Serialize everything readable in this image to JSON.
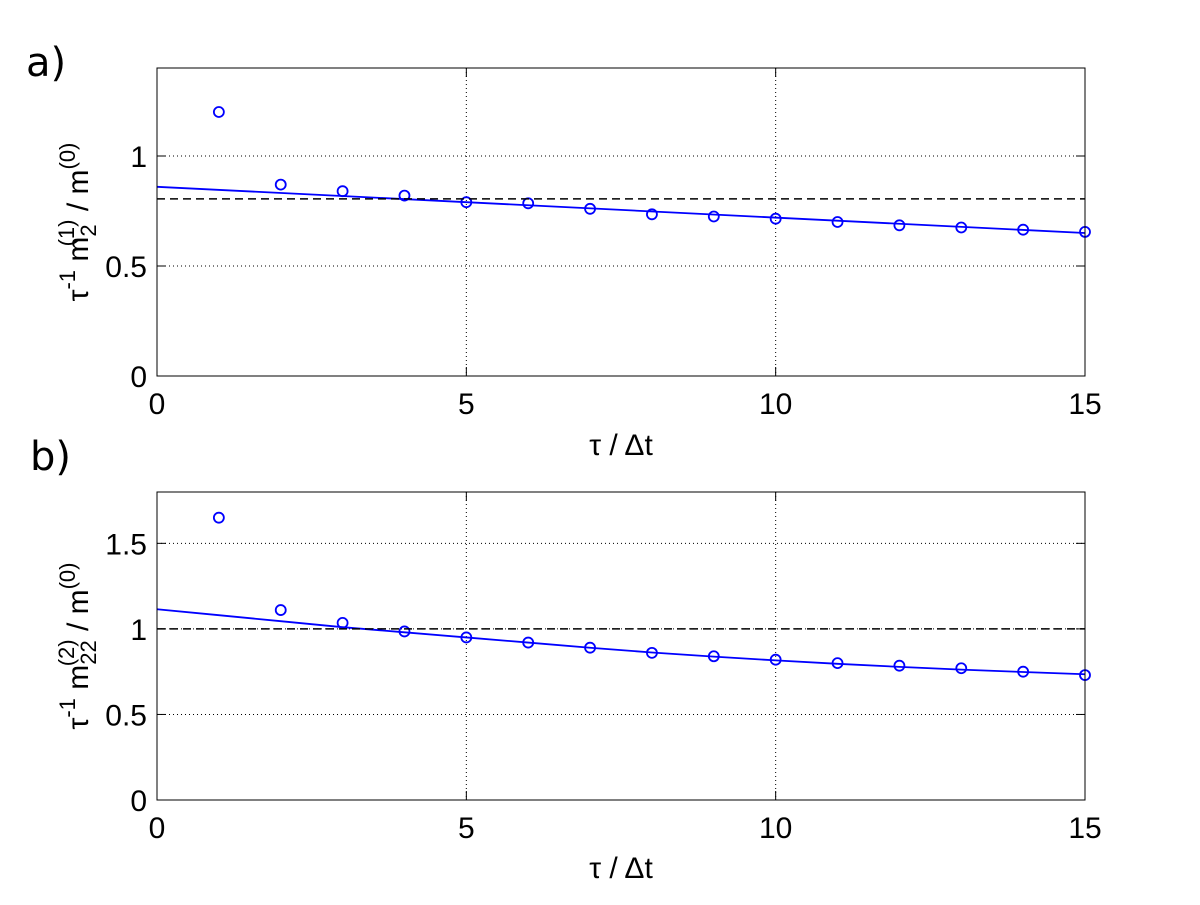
{
  "chart_data": [
    {
      "type": "scatter",
      "panel_label": "a)",
      "xlabel": "τ / Δt",
      "ylabel": {
        "p1": "τ",
        "p2": "-1",
        "p3": " m",
        "p4": "2",
        "p5": "(1)",
        "p6": " / m",
        "p7": "(0)"
      },
      "xlim": [
        0,
        15
      ],
      "ylim": [
        0,
        1.4
      ],
      "xticks": [
        "0",
        "5",
        "10",
        "15"
      ],
      "xtick_values": [
        0,
        5,
        10,
        15
      ],
      "yticks": [
        "0",
        "0.5",
        "1"
      ],
      "ytick_values": [
        0,
        0.5,
        1
      ],
      "grid": "vertical-and-horizontal dotted",
      "series": [
        {
          "style": "circles",
          "color": "#0000ff",
          "x": [
            1,
            2,
            3,
            4,
            5,
            6,
            7,
            8,
            9,
            10,
            11,
            12,
            13,
            14,
            15
          ],
          "y": [
            1.2,
            0.87,
            0.84,
            0.82,
            0.79,
            0.785,
            0.76,
            0.735,
            0.725,
            0.715,
            0.7,
            0.685,
            0.675,
            0.665,
            0.655
          ]
        },
        {
          "style": "fit-line",
          "color": "#0000ff",
          "x": [
            0,
            15
          ],
          "y": [
            0.86,
            0.65
          ]
        },
        {
          "style": "dashed-line",
          "color": "#000000",
          "x": [
            0,
            15
          ],
          "y": [
            0.805,
            0.805
          ]
        }
      ]
    },
    {
      "type": "scatter",
      "panel_label": "b)",
      "xlabel": "τ / Δt",
      "ylabel": {
        "p1": "τ",
        "p2": "-1",
        "p3": " m",
        "p4": "22",
        "p5": "(2)",
        "p6": " / m",
        "p7": "(0)"
      },
      "xlim": [
        0,
        15
      ],
      "ylim": [
        0,
        1.8
      ],
      "xticks": [
        "0",
        "5",
        "10",
        "15"
      ],
      "xtick_values": [
        0,
        5,
        10,
        15
      ],
      "yticks": [
        "0",
        "0.5",
        "1",
        "1.5"
      ],
      "ytick_values": [
        0,
        0.5,
        1,
        1.5
      ],
      "grid": "vertical-and-horizontal dotted",
      "series": [
        {
          "style": "circles",
          "color": "#0000ff",
          "x": [
            1,
            2,
            3,
            4,
            5,
            6,
            7,
            8,
            9,
            10,
            11,
            12,
            13,
            14,
            15
          ],
          "y": [
            1.65,
            1.11,
            1.035,
            0.985,
            0.95,
            0.92,
            0.89,
            0.86,
            0.84,
            0.82,
            0.8,
            0.785,
            0.77,
            0.75,
            0.73
          ]
        },
        {
          "style": "fit-line",
          "color": "#0000ff",
          "x": [
            0,
            1,
            2,
            3,
            4,
            5,
            6,
            7,
            8,
            9,
            10,
            11,
            12,
            13,
            14,
            15
          ],
          "y": [
            1.115,
            1.08,
            1.045,
            1.01,
            0.98,
            0.95,
            0.92,
            0.89,
            0.862,
            0.838,
            0.816,
            0.796,
            0.778,
            0.762,
            0.748,
            0.735
          ]
        },
        {
          "style": "dashed-line",
          "color": "#000000",
          "x": [
            0,
            15
          ],
          "y": [
            1.0,
            1.0
          ]
        }
      ]
    }
  ]
}
